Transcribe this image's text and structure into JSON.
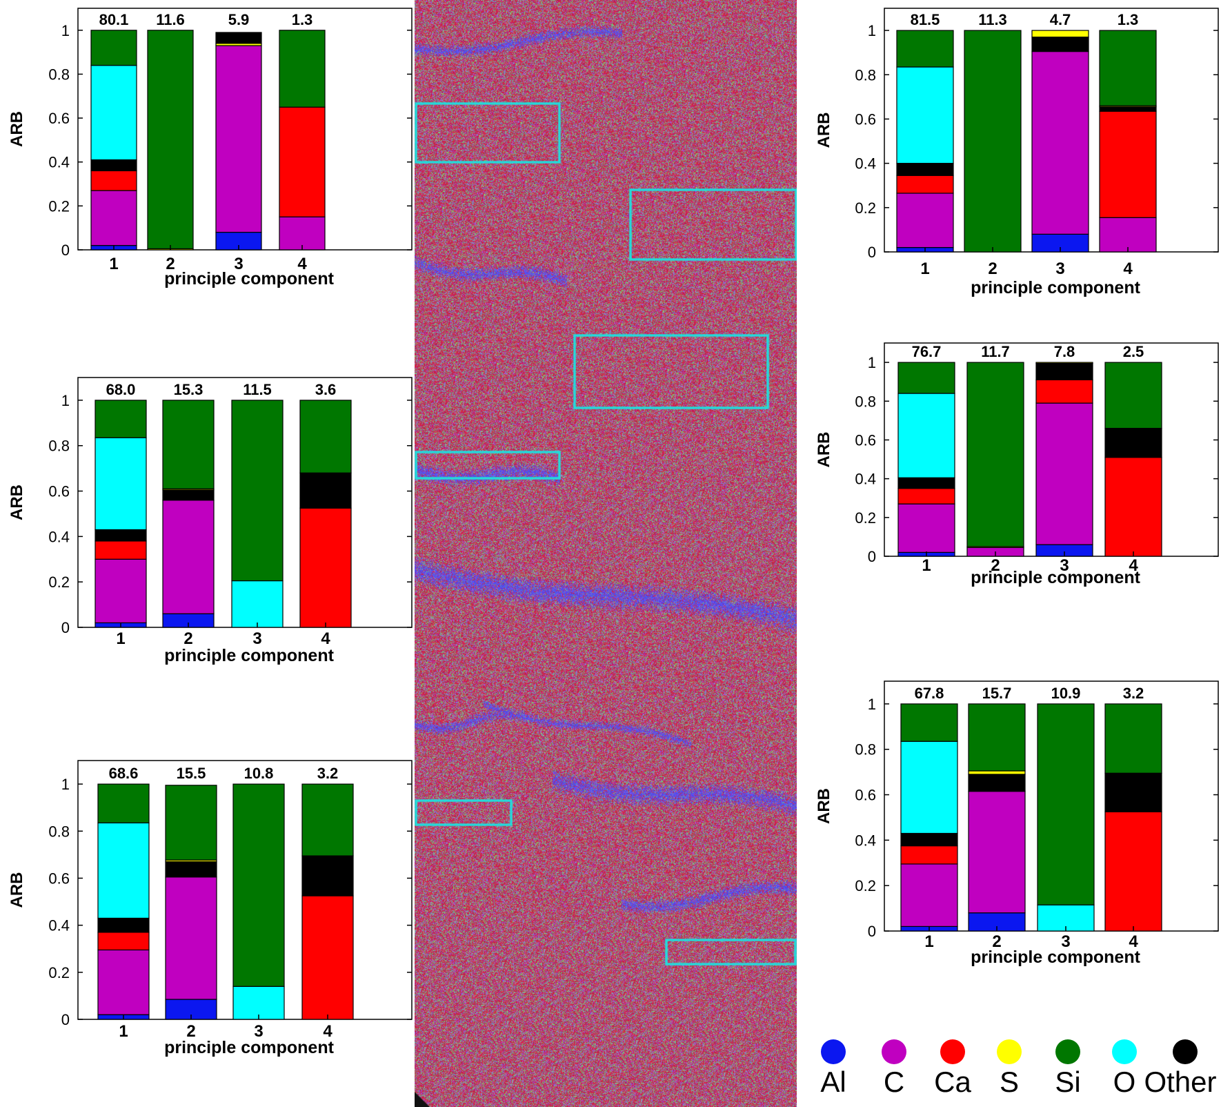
{
  "figure": {
    "map_description_free": true
  },
  "chart_data": [
    {
      "type": "bar",
      "stacked": true,
      "title": "",
      "xlabel": "principle component",
      "ylabel": "ARB",
      "ylim": [
        0,
        1.1
      ],
      "yticks": [
        "0",
        "0.2",
        "0.4",
        "0.6",
        "0.8",
        "1"
      ],
      "categories": [
        "1",
        "2",
        "3",
        "4"
      ],
      "top_labels": [
        "80.1",
        "11.6",
        "5.9",
        "1.3"
      ],
      "series": [
        {
          "name": "Al",
          "values": [
            0.02,
            0.0,
            0.08,
            0.0
          ]
        },
        {
          "name": "C",
          "values": [
            0.25,
            0.0,
            0.85,
            0.15
          ]
        },
        {
          "name": "Ca",
          "values": [
            0.09,
            0.0,
            0.0,
            0.5
          ]
        },
        {
          "name": "S",
          "values": [
            0.0,
            0.005,
            0.01,
            0.0
          ]
        },
        {
          "name": "Other",
          "values": [
            0.05,
            0.0,
            0.05,
            0.0
          ]
        },
        {
          "name": "O",
          "values": [
            0.43,
            0.0,
            0.0,
            0.0
          ]
        },
        {
          "name": "Si",
          "values": [
            0.16,
            0.995,
            0.0,
            0.35
          ]
        }
      ]
    },
    {
      "type": "bar",
      "stacked": true,
      "title": "",
      "xlabel": "principle component",
      "ylabel": "ARB",
      "ylim": [
        0,
        1.1
      ],
      "yticks": [
        "0",
        "0.2",
        "0.4",
        "0.6",
        "0.8",
        "1"
      ],
      "categories": [
        "1",
        "2",
        "3",
        "4"
      ],
      "top_labels": [
        "68.0",
        "15.3",
        "11.5",
        "3.6"
      ],
      "series": [
        {
          "name": "Al",
          "values": [
            0.02,
            0.06,
            0.0,
            0.0
          ]
        },
        {
          "name": "C",
          "values": [
            0.28,
            0.5,
            0.0,
            0.0
          ]
        },
        {
          "name": "Ca",
          "values": [
            0.08,
            0.0,
            0.0,
            0.525
          ]
        },
        {
          "name": "Other",
          "values": [
            0.05,
            0.045,
            0.0,
            0.155
          ]
        },
        {
          "name": "S",
          "values": [
            0.0,
            0.005,
            0.0,
            0.0
          ]
        },
        {
          "name": "O",
          "values": [
            0.405,
            0.0,
            0.205,
            0.0
          ]
        },
        {
          "name": "Si",
          "values": [
            0.165,
            0.39,
            0.795,
            0.32
          ]
        }
      ]
    },
    {
      "type": "bar",
      "stacked": true,
      "title": "",
      "xlabel": "principle component",
      "ylabel": "ARB",
      "ylim": [
        0,
        1.1
      ],
      "yticks": [
        "0",
        "0.2",
        "0.4",
        "0.6",
        "0.8",
        "1"
      ],
      "categories": [
        "1",
        "2",
        "3",
        "4"
      ],
      "top_labels": [
        "68.6",
        "15.5",
        "10.8",
        "3.2"
      ],
      "series": [
        {
          "name": "Al",
          "values": [
            0.02,
            0.085,
            0.0,
            0.0
          ]
        },
        {
          "name": "C",
          "values": [
            0.275,
            0.52,
            0.0,
            0.0
          ]
        },
        {
          "name": "Ca",
          "values": [
            0.075,
            0.0,
            0.0,
            0.525
          ]
        },
        {
          "name": "Other",
          "values": [
            0.06,
            0.065,
            0.0,
            0.17
          ]
        },
        {
          "name": "S",
          "values": [
            0.0,
            0.007,
            0.0,
            0.0
          ]
        },
        {
          "name": "O",
          "values": [
            0.405,
            0.0,
            0.14,
            0.0
          ]
        },
        {
          "name": "Si",
          "values": [
            0.165,
            0.318,
            0.86,
            0.305
          ]
        }
      ]
    },
    {
      "type": "bar",
      "stacked": true,
      "title": "",
      "xlabel": "principle component",
      "ylabel": "ARB",
      "ylim": [
        0,
        1.1
      ],
      "yticks": [
        "0",
        "0.2",
        "0.4",
        "0.6",
        "0.8",
        "1"
      ],
      "categories": [
        "1",
        "2",
        "3",
        "4"
      ],
      "top_labels": [
        "81.5",
        "11.3",
        "4.7",
        "1.3"
      ],
      "series": [
        {
          "name": "Al",
          "values": [
            0.02,
            0.0,
            0.08,
            0.0
          ]
        },
        {
          "name": "C",
          "values": [
            0.245,
            0.0,
            0.825,
            0.155
          ]
        },
        {
          "name": "Ca",
          "values": [
            0.08,
            0.0,
            0.0,
            0.48
          ]
        },
        {
          "name": "Other",
          "values": [
            0.055,
            0.0,
            0.065,
            0.02
          ]
        },
        {
          "name": "S",
          "values": [
            0.0,
            0.0,
            0.03,
            0.005
          ]
        },
        {
          "name": "O",
          "values": [
            0.435,
            0.0,
            0.0,
            0.0
          ]
        },
        {
          "name": "Si",
          "values": [
            0.165,
            1.0,
            0.0,
            0.34
          ]
        }
      ]
    },
    {
      "type": "bar",
      "stacked": true,
      "title": "",
      "xlabel": "principle component",
      "ylabel": "ARB",
      "ylim": [
        0,
        1.1
      ],
      "yticks": [
        "0",
        "0.2",
        "0.4",
        "0.6",
        "0.8",
        "1"
      ],
      "categories": [
        "1",
        "2",
        "3",
        "4"
      ],
      "top_labels": [
        "76.7",
        "11.7",
        "7.8",
        "2.5"
      ],
      "series": [
        {
          "name": "Al",
          "values": [
            0.02,
            0.0,
            0.06,
            0.0
          ]
        },
        {
          "name": "C",
          "values": [
            0.25,
            0.045,
            0.73,
            0.0
          ]
        },
        {
          "name": "Ca",
          "values": [
            0.08,
            0.0,
            0.12,
            0.51
          ]
        },
        {
          "name": "S",
          "values": [
            0.0,
            0.005,
            0.0,
            0.0
          ]
        },
        {
          "name": "Other",
          "values": [
            0.055,
            0.0,
            0.085,
            0.15
          ]
        },
        {
          "name": "S",
          "values": [
            0.0,
            0.0,
            0.005,
            0.0
          ]
        },
        {
          "name": "O",
          "values": [
            0.435,
            0.0,
            0.0,
            0.0
          ]
        },
        {
          "name": "Si",
          "values": [
            0.16,
            0.95,
            0.0,
            0.34
          ]
        }
      ]
    },
    {
      "type": "bar",
      "stacked": true,
      "title": "",
      "xlabel": "principle component",
      "ylabel": "ARB",
      "ylim": [
        0,
        1.1
      ],
      "yticks": [
        "0",
        "0.2",
        "0.4",
        "0.6",
        "0.8",
        "1"
      ],
      "categories": [
        "1",
        "2",
        "3",
        "4"
      ],
      "top_labels": [
        "67.8",
        "15.7",
        "10.9",
        "3.2"
      ],
      "series": [
        {
          "name": "Al",
          "values": [
            0.02,
            0.08,
            0.0,
            0.0
          ]
        },
        {
          "name": "C",
          "values": [
            0.275,
            0.535,
            0.0,
            0.0
          ]
        },
        {
          "name": "Ca",
          "values": [
            0.08,
            0.0,
            0.0,
            0.525
          ]
        },
        {
          "name": "Other",
          "values": [
            0.055,
            0.075,
            0.0,
            0.17
          ]
        },
        {
          "name": "S",
          "values": [
            0.0,
            0.015,
            0.0,
            0.0
          ]
        },
        {
          "name": "O",
          "values": [
            0.405,
            0.0,
            0.115,
            0.0
          ]
        },
        {
          "name": "Si",
          "values": [
            0.165,
            0.295,
            0.885,
            0.305
          ]
        }
      ]
    }
  ],
  "colors": {
    "Al": "#0b17f0",
    "C": "#c000c0",
    "Ca": "#ff0000",
    "S": "#ffff00",
    "Si": "#007700",
    "O": "#00ffff",
    "Other": "#000000",
    "highlight_box": "#22dcdc",
    "map_base": "#a8243f"
  },
  "legend": {
    "items": [
      {
        "label": "Al",
        "color": "#0b17f0"
      },
      {
        "label": "C",
        "color": "#c000c0"
      },
      {
        "label": "Ca",
        "color": "#ff0000"
      },
      {
        "label": "S",
        "color": "#ffff00"
      },
      {
        "label": "Si",
        "color": "#007700"
      },
      {
        "label": "O",
        "color": "#00ffff"
      },
      {
        "label": "Other",
        "color": "#000000"
      }
    ]
  }
}
